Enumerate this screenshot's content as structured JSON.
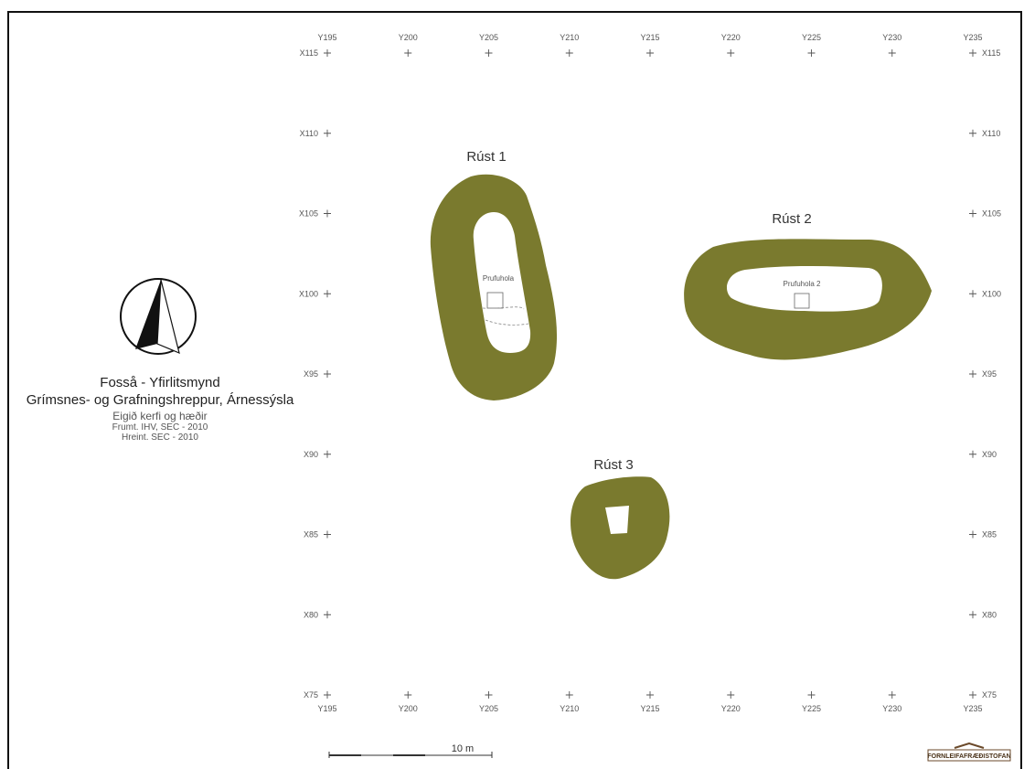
{
  "map": {
    "features": [
      {
        "name": "Rúst 1",
        "probe": "Prufuhola"
      },
      {
        "name": "Rúst 2",
        "probe": "Prufuhola 2"
      },
      {
        "name": "Rúst 3"
      }
    ],
    "grid": {
      "x_labels": [
        "X115",
        "X110",
        "X105",
        "X100",
        "X95",
        "X90",
        "X85",
        "X80",
        "X75"
      ],
      "y_labels": [
        "Y195",
        "Y200",
        "Y205",
        "Y210",
        "Y215",
        "Y220",
        "Y225",
        "Y230",
        "Y235"
      ]
    },
    "colors": {
      "ruin_fill": "#7a7a2e",
      "ink": "#333333"
    }
  },
  "title_block": {
    "title": "Fosså - Yfirlitsmynd",
    "subtitle": "Grímsnes- og Grafningshreppur, Árnessýsla",
    "system": "Eigið kerfi og hæðir",
    "surveyed": "Frumt. IHV, SEC - 2010",
    "drawn": "Hreint. SEC - 2010"
  },
  "scale_bar": {
    "label": "10 m"
  },
  "logo": {
    "text": "FORNLEIFAFRÆÐISTOFAN"
  }
}
